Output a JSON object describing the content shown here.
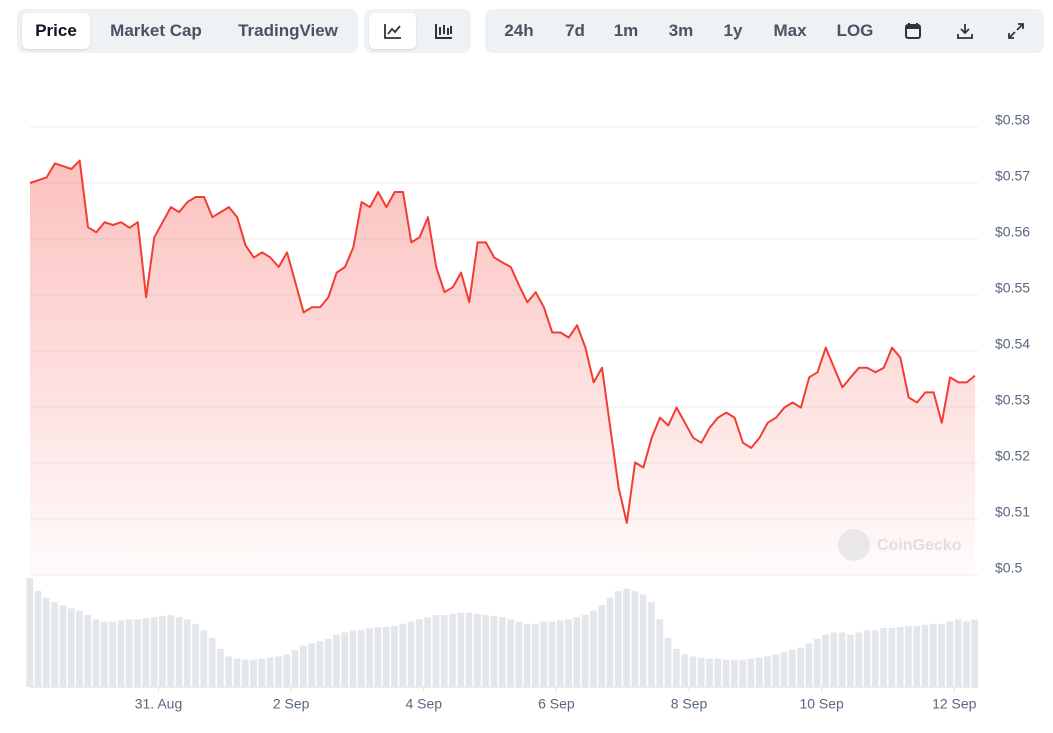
{
  "toolbar": {
    "views": [
      "Price",
      "Market Cap",
      "TradingView"
    ],
    "ranges": [
      "24h",
      "7d",
      "1m",
      "3m",
      "1y",
      "Max",
      "LOG"
    ]
  },
  "watermark": "CoinGecko",
  "chart_data": {
    "type": "line",
    "color": "#f23d35",
    "values": [
      0.57,
      0.5705,
      0.571,
      0.5735,
      0.573,
      0.5725,
      0.574,
      0.5621,
      0.5612,
      0.563,
      0.5625,
      0.563,
      0.562,
      0.563,
      0.5496,
      0.5603,
      0.563,
      0.5657,
      0.5648,
      0.5666,
      0.5675,
      0.5675,
      0.5639,
      0.5648,
      0.5657,
      0.5639,
      0.5589,
      0.5567,
      0.5576,
      0.5567,
      0.555,
      0.5576,
      0.5523,
      0.5469,
      0.5478,
      0.5478,
      0.5496,
      0.554,
      0.555,
      0.5585,
      0.5666,
      0.5657,
      0.5684,
      0.5657,
      0.5684,
      0.5684,
      0.5594,
      0.5603,
      0.5639,
      0.555,
      0.5505,
      0.5514,
      0.554,
      0.5487,
      0.5594,
      0.5594,
      0.5567,
      0.5558,
      0.555,
      0.5517,
      0.5487,
      0.5505,
      0.5478,
      0.5433,
      0.5433,
      0.5424,
      0.5446,
      0.5406,
      0.5344,
      0.537,
      0.5263,
      0.5156,
      0.5093,
      0.5201,
      0.5192,
      0.5245,
      0.5281,
      0.5267,
      0.5299,
      0.5272,
      0.5245,
      0.5236,
      0.5263,
      0.5281,
      0.529,
      0.5281,
      0.5236,
      0.5227,
      0.5245,
      0.5272,
      0.5281,
      0.5299,
      0.5308,
      0.5299,
      0.5353,
      0.5362,
      0.5406,
      0.537,
      0.5335,
      0.5353,
      0.537,
      0.537,
      0.5362,
      0.537,
      0.5406,
      0.5388,
      0.5317,
      0.5308,
      0.5326,
      0.5326,
      0.5272,
      0.5353,
      0.5344,
      0.5344,
      0.5356
    ],
    "volume": {
      "color": "#e3e6ea",
      "values": [
        100,
        88,
        82,
        78,
        75,
        72,
        70,
        66,
        62,
        60,
        60,
        61,
        62,
        62,
        63,
        64,
        65,
        66,
        64,
        62,
        58,
        52,
        45,
        35,
        28,
        26,
        25,
        25,
        26,
        27,
        28,
        30,
        34,
        38,
        40,
        42,
        44,
        48,
        50,
        52,
        52,
        54,
        55,
        55,
        56,
        58,
        60,
        62,
        64,
        66,
        66,
        67,
        68,
        68,
        67,
        66,
        65,
        64,
        62,
        60,
        58,
        58,
        60,
        60,
        61,
        62,
        64,
        66,
        70,
        75,
        82,
        88,
        90,
        88,
        85,
        78,
        62,
        45,
        35,
        30,
        28,
        27,
        26,
        26,
        25,
        25,
        25,
        26,
        27,
        28,
        30,
        32,
        34,
        36,
        40,
        44,
        48,
        50,
        50,
        48,
        50,
        52,
        52,
        54,
        54,
        55,
        56,
        56,
        57,
        58,
        58,
        60,
        62,
        60,
        62
      ]
    },
    "xlim": [
      0,
      114
    ],
    "xticks": [
      {
        "value": 15.5,
        "label": "31. Aug"
      },
      {
        "value": 31.5,
        "label": "2 Sep"
      },
      {
        "value": 47.5,
        "label": "4 Sep"
      },
      {
        "value": 63.5,
        "label": "6 Sep"
      },
      {
        "value": 79.5,
        "label": "8 Sep"
      },
      {
        "value": 95.5,
        "label": "10 Sep"
      },
      {
        "value": 111.5,
        "label": "12 Sep"
      }
    ],
    "ylim": [
      0.5,
      0.58
    ],
    "yticks": [
      {
        "value": 0.5,
        "label": "$0.5"
      },
      {
        "value": 0.51,
        "label": "$0.51"
      },
      {
        "value": 0.52,
        "label": "$0.52"
      },
      {
        "value": 0.53,
        "label": "$0.53"
      },
      {
        "value": 0.54,
        "label": "$0.54"
      },
      {
        "value": 0.55,
        "label": "$0.55"
      },
      {
        "value": 0.56,
        "label": "$0.56"
      },
      {
        "value": 0.57,
        "label": "$0.57"
      },
      {
        "value": 0.58,
        "label": "$0.58"
      }
    ],
    "grid": true
  }
}
